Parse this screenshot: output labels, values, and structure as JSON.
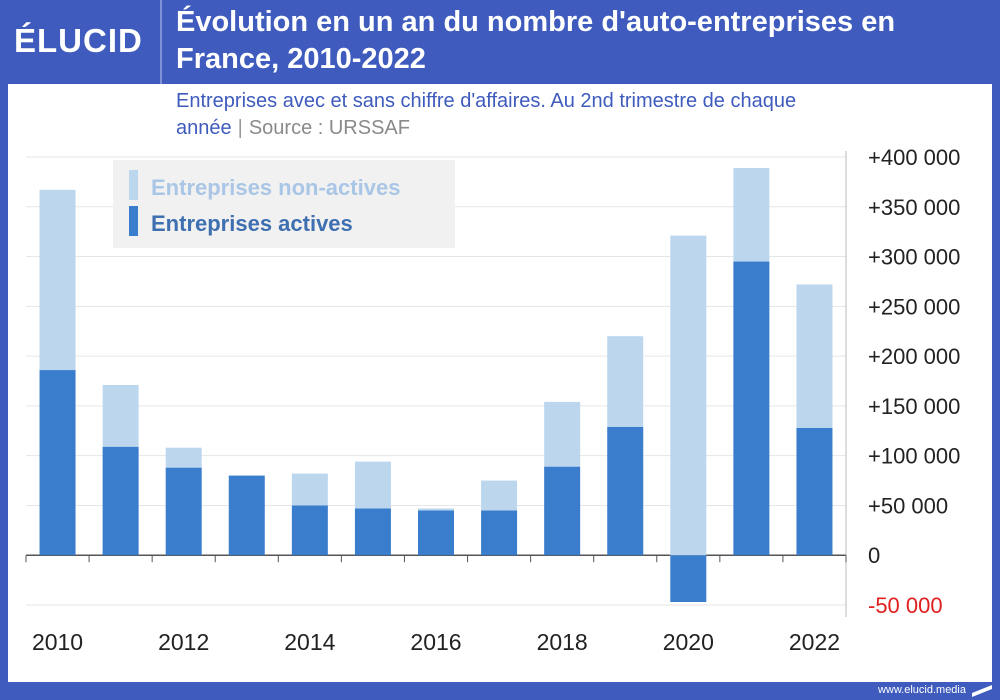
{
  "brand": {
    "logo": "ÉLUCID",
    "footer": "www.elucid.media"
  },
  "header": {
    "title": "Évolution en un an du nombre d'auto-entreprises en France, 2010-2022"
  },
  "subtitle": {
    "text": "Entreprises avec et sans chiffre d'affaires. Au 2nd trimestre de chaque année",
    "separator": "|",
    "source": "Source : URSSAF"
  },
  "colors": {
    "background": "#3e5bbd",
    "active": "#3a7dcc",
    "inactive": "#bcd6ee",
    "negative_label": "#e02020",
    "axis_text": "#222222",
    "grid": "#e6e6e6"
  },
  "chart_data": {
    "type": "bar",
    "stacked": true,
    "x": [
      2010,
      2011,
      2012,
      2013,
      2014,
      2015,
      2016,
      2017,
      2018,
      2019,
      2020,
      2021,
      2022
    ],
    "x_tick_labels": [
      "2010",
      "2012",
      "2014",
      "2016",
      "2018",
      "2020",
      "2022"
    ],
    "series": [
      {
        "name": "Entreprises actives",
        "color": "#3a7dcc",
        "values": [
          186000,
          109000,
          88000,
          80000,
          50000,
          47000,
          45000,
          45000,
          89000,
          129000,
          -47000,
          295000,
          128000
        ]
      },
      {
        "name": "Entreprises non-actives",
        "color": "#bcd6ee",
        "values": [
          181000,
          62000,
          20000,
          0,
          32000,
          47000,
          2000,
          30000,
          65000,
          91000,
          321000,
          94000,
          144000
        ]
      }
    ],
    "ylim": [
      -50000,
      400000
    ],
    "y_tick_labels": [
      "+400 000",
      "+350 000",
      "+300 000",
      "+250 000",
      "+200 000",
      "+150 000",
      "+100 000",
      "+50 000",
      "0",
      "-50 000"
    ],
    "y_tick_values": [
      400000,
      350000,
      300000,
      250000,
      200000,
      150000,
      100000,
      50000,
      0,
      -50000
    ],
    "legend_order": [
      "Entreprises non-actives",
      "Entreprises actives"
    ],
    "legend_position": "top-left",
    "y_axis_side": "right",
    "grid": true
  }
}
